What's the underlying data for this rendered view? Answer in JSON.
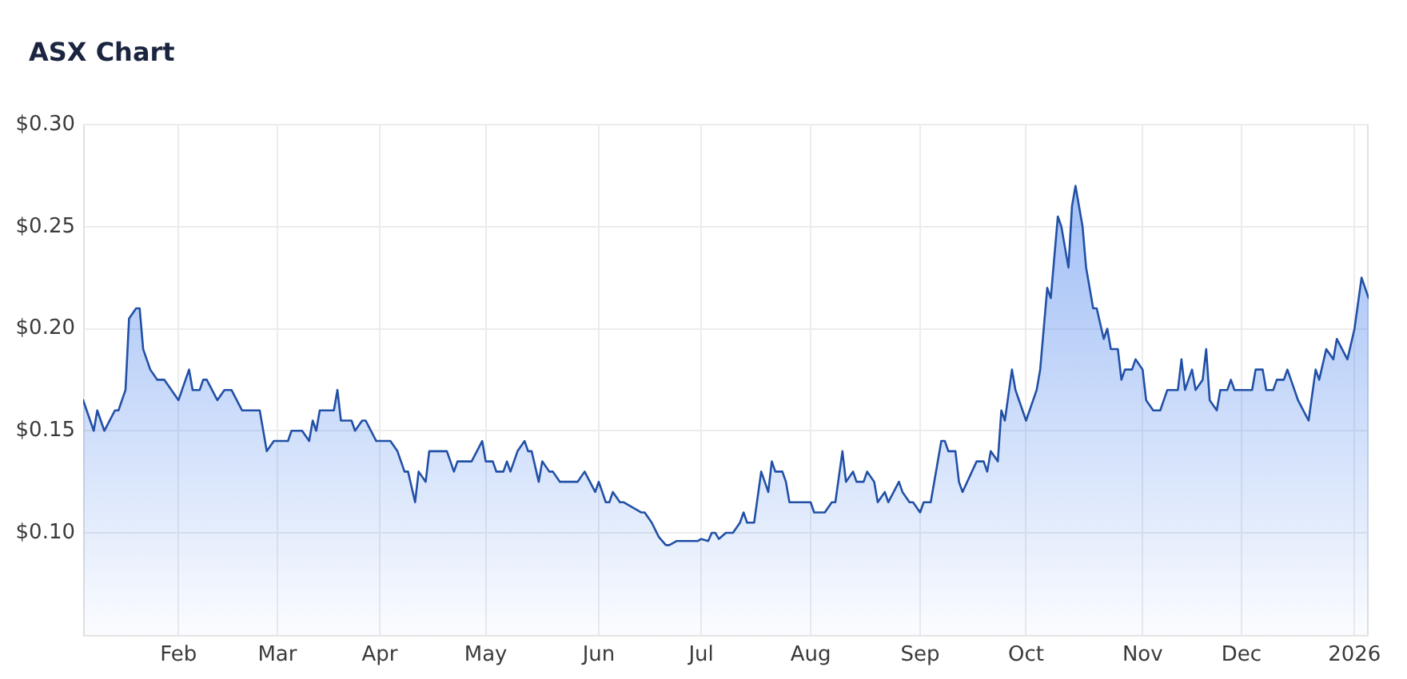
{
  "chart_data": {
    "type": "area",
    "title": "ASX Chart",
    "color": "#2150a6",
    "marker": "none",
    "line_style": "solid",
    "grid": true,
    "x": [
      "2025-01-07",
      "2025-01-08",
      "2025-01-10",
      "2025-01-11",
      "2025-01-13",
      "2025-01-16",
      "2025-01-17",
      "2025-01-19",
      "2025-01-20",
      "2025-01-22",
      "2025-01-23",
      "2025-01-24",
      "2025-01-26",
      "2025-01-28",
      "2025-01-30",
      "2025-02-03",
      "2025-02-04",
      "2025-02-06",
      "2025-02-07",
      "2025-02-09",
      "2025-02-10",
      "2025-02-11",
      "2025-02-14",
      "2025-02-16",
      "2025-02-18",
      "2025-02-21",
      "2025-02-26",
      "2025-02-27",
      "2025-02-28",
      "2025-03-02",
      "2025-03-06",
      "2025-03-07",
      "2025-03-10",
      "2025-03-12",
      "2025-03-13",
      "2025-03-14",
      "2025-03-15",
      "2025-03-19",
      "2025-03-20",
      "2025-03-21",
      "2025-03-24",
      "2025-03-25",
      "2025-03-27",
      "2025-03-28",
      "2025-03-31",
      "2025-04-04",
      "2025-04-06",
      "2025-04-08",
      "2025-04-09",
      "2025-04-11",
      "2025-04-12",
      "2025-04-14",
      "2025-04-15",
      "2025-04-20",
      "2025-04-22",
      "2025-04-23",
      "2025-04-27",
      "2025-04-30",
      "2025-05-01",
      "2025-05-03",
      "2025-05-04",
      "2025-05-06",
      "2025-05-07",
      "2025-05-08",
      "2025-05-10",
      "2025-05-12",
      "2025-05-13",
      "2025-05-14",
      "2025-05-16",
      "2025-05-17",
      "2025-05-19",
      "2025-05-20",
      "2025-05-22",
      "2025-05-27",
      "2025-05-29",
      "2025-06-01",
      "2025-06-02",
      "2025-06-04",
      "2025-06-05",
      "2025-06-06",
      "2025-06-08",
      "2025-06-09",
      "2025-06-14",
      "2025-06-15",
      "2025-06-17",
      "2025-06-19",
      "2025-06-21",
      "2025-06-22",
      "2025-06-24",
      "2025-06-30",
      "2025-07-01",
      "2025-07-03",
      "2025-07-04",
      "2025-07-05",
      "2025-07-06",
      "2025-07-08",
      "2025-07-10",
      "2025-07-12",
      "2025-07-13",
      "2025-07-14",
      "2025-07-16",
      "2025-07-18",
      "2025-07-20",
      "2025-07-21",
      "2025-07-22",
      "2025-07-24",
      "2025-07-25",
      "2025-07-26",
      "2025-08-01",
      "2025-08-02",
      "2025-08-05",
      "2025-08-07",
      "2025-08-08",
      "2025-08-10",
      "2025-08-11",
      "2025-08-13",
      "2025-08-14",
      "2025-08-16",
      "2025-08-17",
      "2025-08-19",
      "2025-08-20",
      "2025-08-22",
      "2025-08-23",
      "2025-08-26",
      "2025-08-27",
      "2025-08-29",
      "2025-08-30",
      "2025-09-01",
      "2025-09-02",
      "2025-09-04",
      "2025-09-05",
      "2025-09-07",
      "2025-09-08",
      "2025-09-09",
      "2025-09-11",
      "2025-09-12",
      "2025-09-13",
      "2025-09-17",
      "2025-09-19",
      "2025-09-20",
      "2025-09-21",
      "2025-09-23",
      "2025-09-24",
      "2025-09-25",
      "2025-09-27",
      "2025-09-28",
      "2025-09-29",
      "2025-10-01",
      "2025-10-02",
      "2025-10-04",
      "2025-10-05",
      "2025-10-07",
      "2025-10-08",
      "2025-10-10",
      "2025-10-11",
      "2025-10-13",
      "2025-10-14",
      "2025-10-15",
      "2025-10-17",
      "2025-10-18",
      "2025-10-20",
      "2025-10-21",
      "2025-10-23",
      "2025-10-24",
      "2025-10-25",
      "2025-10-27",
      "2025-10-28",
      "2025-10-29",
      "2025-10-31",
      "2025-11-01",
      "2025-11-03",
      "2025-11-04",
      "2025-11-06",
      "2025-11-08",
      "2025-11-10",
      "2025-11-13",
      "2025-11-14",
      "2025-11-15",
      "2025-11-17",
      "2025-11-18",
      "2025-11-20",
      "2025-11-21",
      "2025-11-22",
      "2025-11-24",
      "2025-11-25",
      "2025-11-27",
      "2025-11-28",
      "2025-11-29",
      "2025-12-04",
      "2025-12-05",
      "2025-12-07",
      "2025-12-08",
      "2025-12-10",
      "2025-12-11",
      "2025-12-13",
      "2025-12-14",
      "2025-12-16",
      "2025-12-17",
      "2025-12-20",
      "2025-12-22",
      "2025-12-23",
      "2025-12-25",
      "2025-12-27",
      "2025-12-28",
      "2025-12-31",
      "2026-01-02",
      "2026-01-04",
      "2026-01-06"
    ],
    "values": [
      0.165,
      0.16,
      0.15,
      0.16,
      0.15,
      0.16,
      0.16,
      0.17,
      0.205,
      0.21,
      0.21,
      0.19,
      0.18,
      0.175,
      0.175,
      0.165,
      0.17,
      0.18,
      0.17,
      0.17,
      0.175,
      0.175,
      0.165,
      0.17,
      0.17,
      0.16,
      0.16,
      0.15,
      0.14,
      0.145,
      0.145,
      0.15,
      0.15,
      0.145,
      0.155,
      0.15,
      0.16,
      0.16,
      0.17,
      0.155,
      0.155,
      0.15,
      0.155,
      0.155,
      0.145,
      0.145,
      0.14,
      0.13,
      0.13,
      0.115,
      0.13,
      0.125,
      0.14,
      0.14,
      0.13,
      0.135,
      0.135,
      0.145,
      0.135,
      0.135,
      0.13,
      0.13,
      0.135,
      0.13,
      0.14,
      0.145,
      0.14,
      0.14,
      0.125,
      0.135,
      0.13,
      0.13,
      0.125,
      0.125,
      0.13,
      0.12,
      0.125,
      0.115,
      0.115,
      0.12,
      0.115,
      0.115,
      0.11,
      0.11,
      0.105,
      0.098,
      0.094,
      0.094,
      0.096,
      0.096,
      0.097,
      0.096,
      0.1,
      0.1,
      0.097,
      0.1,
      0.1,
      0.105,
      0.11,
      0.105,
      0.105,
      0.13,
      0.12,
      0.135,
      0.13,
      0.13,
      0.125,
      0.115,
      0.115,
      0.11,
      0.11,
      0.115,
      0.115,
      0.14,
      0.125,
      0.13,
      0.125,
      0.125,
      0.13,
      0.125,
      0.115,
      0.12,
      0.115,
      0.125,
      0.12,
      0.115,
      0.115,
      0.11,
      0.115,
      0.115,
      0.125,
      0.145,
      0.145,
      0.14,
      0.14,
      0.125,
      0.12,
      0.135,
      0.135,
      0.13,
      0.14,
      0.135,
      0.16,
      0.155,
      0.18,
      0.17,
      0.165,
      0.155,
      0.16,
      0.17,
      0.18,
      0.22,
      0.215,
      0.255,
      0.25,
      0.23,
      0.26,
      0.27,
      0.25,
      0.23,
      0.21,
      0.21,
      0.195,
      0.2,
      0.19,
      0.19,
      0.175,
      0.18,
      0.18,
      0.185,
      0.18,
      0.165,
      0.16,
      0.16,
      0.17,
      0.17,
      0.185,
      0.17,
      0.18,
      0.17,
      0.175,
      0.19,
      0.165,
      0.16,
      0.17,
      0.17,
      0.175,
      0.17,
      0.17,
      0.18,
      0.18,
      0.17,
      0.17,
      0.175,
      0.175,
      0.18,
      0.17,
      0.165,
      0.155,
      0.18,
      0.175,
      0.19,
      0.185,
      0.195,
      0.185,
      0.2,
      0.225,
      0.215
    ],
    "xlim": [
      "2025-01-07",
      "2026-01-06"
    ],
    "xticks": [
      {
        "value": "2025-02-03",
        "label": "Feb"
      },
      {
        "value": "2025-03-03",
        "label": "Mar"
      },
      {
        "value": "2025-04-01",
        "label": "Apr"
      },
      {
        "value": "2025-05-01",
        "label": "May"
      },
      {
        "value": "2025-06-02",
        "label": "Jun"
      },
      {
        "value": "2025-07-01",
        "label": "Jul"
      },
      {
        "value": "2025-08-01",
        "label": "Aug"
      },
      {
        "value": "2025-09-01",
        "label": "Sep"
      },
      {
        "value": "2025-10-01",
        "label": "Oct"
      },
      {
        "value": "2025-11-03",
        "label": "Nov"
      },
      {
        "value": "2025-12-01",
        "label": "Dec"
      },
      {
        "value": "2026-01-02",
        "label": "2026"
      }
    ],
    "ylim": [
      0.05,
      0.3
    ],
    "yticks": [
      {
        "value": 0.1,
        "label": "$0.10"
      },
      {
        "value": 0.15,
        "label": "$0.15"
      },
      {
        "value": 0.2,
        "label": "$0.20"
      },
      {
        "value": 0.25,
        "label": "$0.25"
      },
      {
        "value": 0.3,
        "label": "$0.30"
      }
    ]
  }
}
